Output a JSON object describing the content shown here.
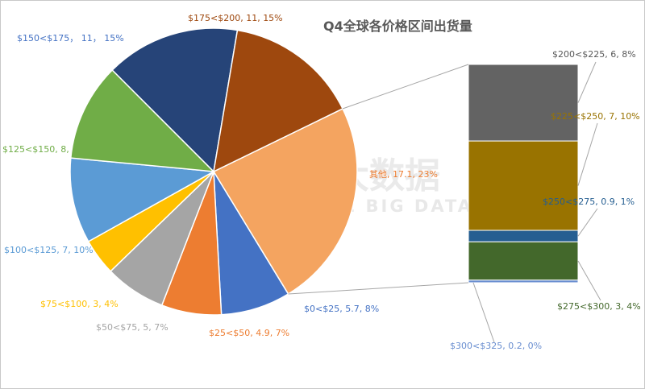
{
  "chart_data": {
    "type": "pie",
    "subtype": "pie-of-bar",
    "title": "Q4全球各价格区间出货量",
    "watermark": {
      "main": "旭日大数据",
      "sub": "SUNRISE BIG DATA"
    },
    "pie_slices": [
      {
        "category": "其他",
        "value": 17.1,
        "percent": "23%",
        "label": "其他, 17.1, 23%",
        "color": "#f4a460"
      },
      {
        "category": "$0<$25",
        "value": 5.7,
        "percent": "8%",
        "label": "$0<$25, 5.7, 8%",
        "color": "#4472c4"
      },
      {
        "category": "$25<$50",
        "value": 4.9,
        "percent": "7%",
        "label": "$25<$50, 4.9, 7%",
        "color": "#ed7d31"
      },
      {
        "category": "$50<$75",
        "value": 5,
        "percent": "7%",
        "label": "$50<$75, 5, 7%",
        "color": "#a5a5a5"
      },
      {
        "category": "$75<$100",
        "value": 3,
        "percent": "4%",
        "label": "$75<$100, 3, 4%",
        "color": "#ffc000"
      },
      {
        "category": "$100<$125",
        "value": 7,
        "percent": "10%",
        "label": "$100<$125, 7, 10%",
        "color": "#5b9bd5"
      },
      {
        "category": "$125<$150",
        "value": 8,
        "percent": "",
        "label": "$125<$150, 8,",
        "color": "#70ad47"
      },
      {
        "category": "$150<$175",
        "value": 11,
        "percent": "15%",
        "label": "$150<$175， 11， 15%",
        "color": "#264478"
      },
      {
        "category": "$175<$200",
        "value": 11,
        "percent": "15%",
        "label": "$175<$200, 11, 15%",
        "color": "#9e480e"
      }
    ],
    "bar_segments": [
      {
        "category": "$200<$225",
        "value": 6,
        "percent": "8%",
        "label": "$200<$225, 6, 8%",
        "color": "#636363"
      },
      {
        "category": "$225<$250",
        "value": 7,
        "percent": "10%",
        "label": "$225<$250, 7, 10%",
        "color": "#997300"
      },
      {
        "category": "$250<$275",
        "value": 0.9,
        "percent": "1%",
        "label": "$250<$275, 0.9, 1%",
        "color": "#255e91"
      },
      {
        "category": "$275<$300",
        "value": 3,
        "percent": "4%",
        "label": "$275<$300, 3, 4%",
        "color": "#43682b"
      },
      {
        "category": "$300<$325",
        "value": 0.2,
        "percent": "0%",
        "label": "$300<$325, 0.2, 0%",
        "color": "#698ed0"
      }
    ]
  }
}
